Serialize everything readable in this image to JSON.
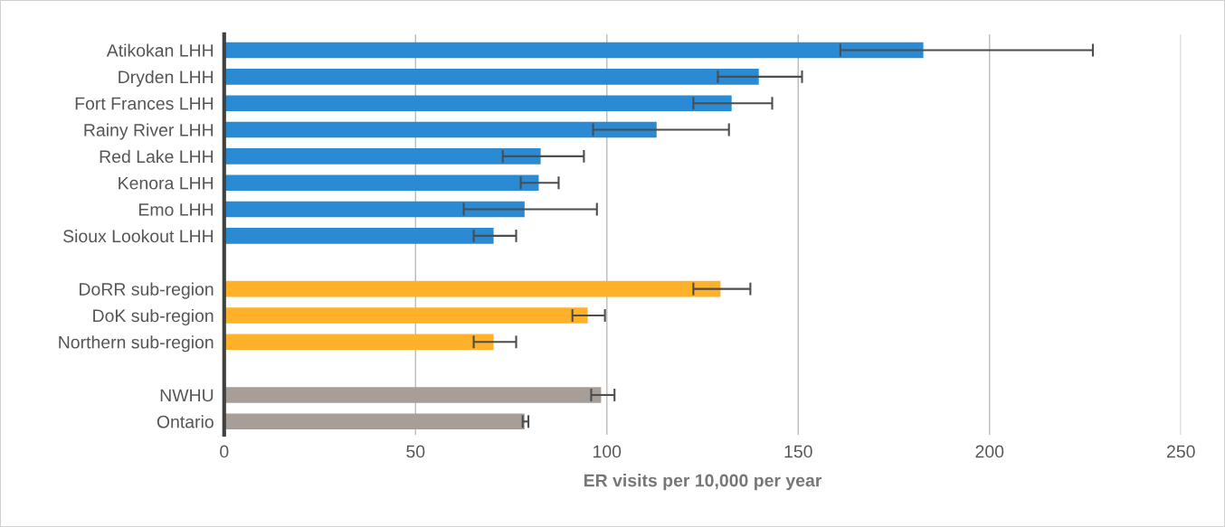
{
  "chart_data": {
    "type": "bar",
    "orientation": "horizontal",
    "categories": [
      "Atikokan LHH",
      "Dryden LHH",
      "Fort Frances LHH",
      "Rainy River LHH",
      "Red Lake LHH",
      "Kenora LHH",
      "Emo LHH",
      "Sioux Lookout LHH",
      null,
      "DoRR sub-region",
      "DoK sub-region",
      "Northern sub-region",
      null,
      "NWHU",
      "Ontario"
    ],
    "values": [
      182.7,
      139.7,
      132.6,
      113,
      82.7,
      82.2,
      78.5,
      70.4,
      null,
      129.7,
      95,
      70.4,
      null,
      98.5,
      78.5
    ],
    "colors": [
      "#2a8ad4",
      "#2a8ad4",
      "#2a8ad4",
      "#2a8ad4",
      "#2a8ad4",
      "#2a8ad4",
      "#2a8ad4",
      "#2a8ad4",
      null,
      "#ffb12a",
      "#ffb12a",
      "#ffb12a",
      null,
      "#a79e98",
      "#a79e98"
    ],
    "errors": [
      [
        161,
        227
      ],
      [
        129,
        151
      ],
      [
        122.6,
        143.2
      ],
      [
        96.4,
        131.9
      ],
      [
        72.8,
        94
      ],
      [
        77.5,
        87.4
      ],
      [
        62.6,
        97.4
      ],
      [
        65.2,
        76.3
      ],
      null,
      [
        122.6,
        137.5
      ],
      [
        91,
        99.5
      ],
      [
        65.2,
        76.3
      ],
      null,
      [
        95.9,
        102
      ],
      [
        78,
        79.5
      ]
    ],
    "xlabel": "ER visits per 10,000 per year",
    "xlim": [
      0,
      250
    ],
    "xticks": [
      0,
      50,
      100,
      150,
      200,
      250
    ],
    "grid": "x"
  }
}
